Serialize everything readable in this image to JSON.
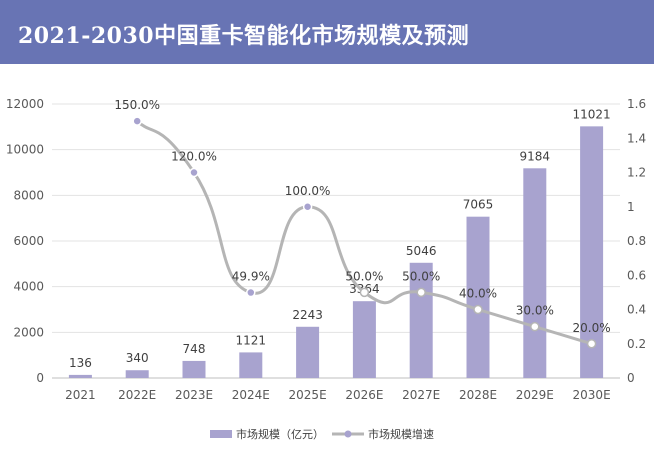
{
  "header": {
    "title": "2021-2030中国重卡智能化市场规模及预测"
  },
  "colors": {
    "header_bg": "#6874b4",
    "bar": "#a8a3cf",
    "line": "#b5b5b5",
    "marker_fill": "#a8a3cf"
  },
  "chart_data": {
    "type": "bar+line",
    "title": "2021-2030中国重卡智能化市场规模及预测",
    "categories": [
      "2021",
      "2022E",
      "2023E",
      "2024E",
      "2025E",
      "2026E",
      "2027E",
      "2028E",
      "2029E",
      "2030E"
    ],
    "series": [
      {
        "name": "市场规模（亿元）",
        "type": "bar",
        "axis": "left",
        "values": [
          136,
          340,
          748,
          1121,
          2243,
          3364,
          5046,
          7065,
          9184,
          11021
        ],
        "labels": [
          "136",
          "340",
          "748",
          "1121",
          "2243",
          "3364",
          "5046",
          "7065",
          "9184",
          "11021"
        ]
      },
      {
        "name": "市场规模增速",
        "type": "line",
        "axis": "right",
        "values": [
          null,
          1.5,
          1.2,
          0.499,
          1.0,
          0.5,
          0.5,
          0.4,
          0.3,
          0.2
        ],
        "labels": [
          "",
          "150.0%",
          "120.0%",
          "49.9%",
          "100.0%",
          "50.0%",
          "50.0%",
          "40.0%",
          "30.0%",
          "20.0%"
        ]
      }
    ],
    "y_left": {
      "min": 0,
      "max": 12000,
      "ticks": [
        "0",
        "2000",
        "4000",
        "6000",
        "8000",
        "10000",
        "12000"
      ]
    },
    "y_right": {
      "min": 0,
      "max": 1.6,
      "ticks": [
        "0",
        "0.2",
        "0.4",
        "0.6",
        "0.8",
        "1",
        "1.2",
        "1.4",
        "1.6"
      ]
    },
    "legend": {
      "position": "bottom"
    }
  }
}
